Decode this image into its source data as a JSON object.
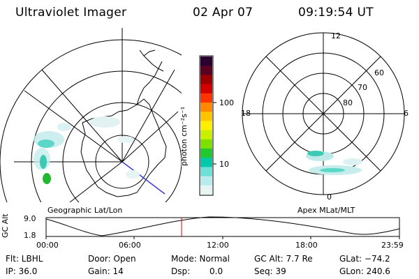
{
  "header": {
    "title": "Ultraviolet Imager",
    "date": "02 Apr 07",
    "time": "09:19:54 UT"
  },
  "left_panel": {
    "label": "Geographic Lat/Lon"
  },
  "colorbar": {
    "label": "photon cm⁻²s⁻¹",
    "tick_100": "100",
    "tick_10": "10",
    "colors": [
      "#2a0030",
      "#5a0020",
      "#9c0000",
      "#d40000",
      "#ff3300",
      "#ff8800",
      "#ffc400",
      "#ffee00",
      "#c8f000",
      "#7ee000",
      "#22c830",
      "#00c8a8",
      "#6ee0d8",
      "#b8ecec",
      "#e6f4f4"
    ]
  },
  "right_panel": {
    "label": "Apex MLat/MLT",
    "mlt_top": "12",
    "mlt_left": "18",
    "mlt_right": "6",
    "mlt_bottom": "0",
    "lat_60": "60",
    "lat_70": "70",
    "lat_80": "80"
  },
  "altitude_plot": {
    "ylabel": "GC Alt",
    "y_top": "9.0",
    "y_bottom": "1.8",
    "x_ticks": [
      "00:00",
      "06:00",
      "12:00",
      "18:00",
      "23:59"
    ],
    "current_time_marker": "09:19:54",
    "marker_color": "#e00000"
  },
  "info": {
    "filter": "Flt: LBHL",
    "ip": "IP: 36.0",
    "door": "Door: Open",
    "gain": "Gain: 14",
    "mode": "Mode: Normal",
    "dsp_label": "Dsp:",
    "dsp_value": "0.0",
    "gc_alt": "GC Alt: 7.7 Re",
    "seq": "Seq: 39",
    "glat": "GLat: −74.2",
    "glon": "GLon: 240.6"
  }
}
